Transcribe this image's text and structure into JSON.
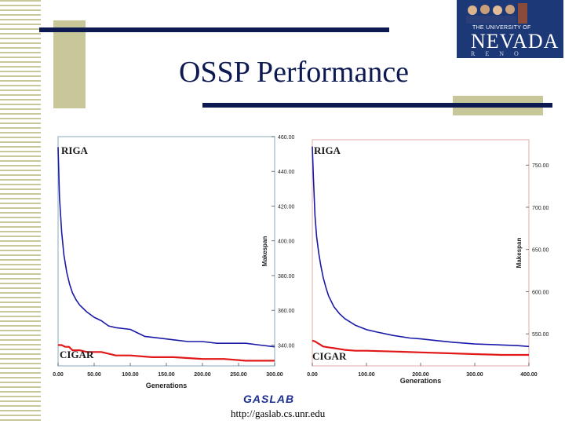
{
  "slide": {
    "title": "OSSP Performance",
    "lab": "GASLAB",
    "url": "http://gaslab.cs.unr.edu"
  },
  "logo": {
    "university_line": "THE UNIVERSITY OF",
    "name": "NEVADA",
    "city": "RENO"
  },
  "colors": {
    "navy": "#0d1a52",
    "olive": "#c8c79a",
    "riga": "#1a1aa8",
    "cigar": "#e01818"
  },
  "chart_data": [
    {
      "type": "line",
      "xlabel": "Generations",
      "ylabel": "Makespan",
      "xlim": [
        0,
        300
      ],
      "ylim": [
        328,
        460
      ],
      "xticks": [
        "0.00",
        "50.00",
        "100.00",
        "150.00",
        "200.00",
        "250.00",
        "300.00"
      ],
      "yticks": [
        "340.00",
        "360.00",
        "380.00",
        "400.00",
        "420.00",
        "440.00",
        "460.00"
      ],
      "series": [
        {
          "name": "RIGA",
          "x": [
            0,
            2,
            5,
            8,
            12,
            16,
            20,
            25,
            30,
            35,
            40,
            50,
            60,
            70,
            80,
            100,
            120,
            140,
            160,
            180,
            200,
            220,
            240,
            260,
            280,
            300
          ],
          "y": [
            454,
            425,
            405,
            392,
            382,
            375,
            370,
            366,
            363,
            361,
            359,
            356,
            354,
            351,
            350,
            349,
            345,
            344,
            343,
            342,
            342,
            341,
            341,
            341,
            340,
            339
          ]
        },
        {
          "name": "CIGAR",
          "x": [
            0,
            5,
            10,
            15,
            20,
            30,
            40,
            60,
            80,
            100,
            130,
            160,
            200,
            230,
            260,
            300
          ],
          "y": [
            340,
            340,
            339,
            339,
            337,
            337,
            336,
            336,
            334,
            334,
            333,
            333,
            332,
            332,
            331,
            331
          ]
        }
      ]
    },
    {
      "type": "line",
      "xlabel": "Generations",
      "ylabel": "Makespan",
      "xlim": [
        0,
        400
      ],
      "ylim": [
        512,
        780
      ],
      "xticks": [
        "0.00",
        "100.00",
        "200.00",
        "300.00",
        "400.00"
      ],
      "yticks": [
        "550.00",
        "600.00",
        "650.00",
        "700.00",
        "750.00"
      ],
      "series": [
        {
          "name": "RIGA",
          "x": [
            0,
            2,
            5,
            8,
            12,
            16,
            20,
            25,
            30,
            40,
            50,
            60,
            80,
            100,
            120,
            150,
            180,
            200,
            230,
            260,
            300,
            340,
            380,
            400
          ],
          "y": [
            772,
            735,
            690,
            665,
            645,
            630,
            617,
            605,
            595,
            582,
            574,
            568,
            560,
            555,
            552,
            548,
            545,
            544,
            542,
            540,
            538,
            537,
            536,
            535
          ]
        },
        {
          "name": "CIGAR",
          "x": [
            0,
            5,
            10,
            15,
            20,
            30,
            40,
            60,
            80,
            100,
            150,
            200,
            250,
            300,
            350,
            400
          ],
          "y": [
            542,
            541,
            539,
            537,
            535,
            534,
            533,
            531,
            530,
            530,
            529,
            528,
            527,
            526,
            525,
            525
          ]
        }
      ]
    }
  ]
}
